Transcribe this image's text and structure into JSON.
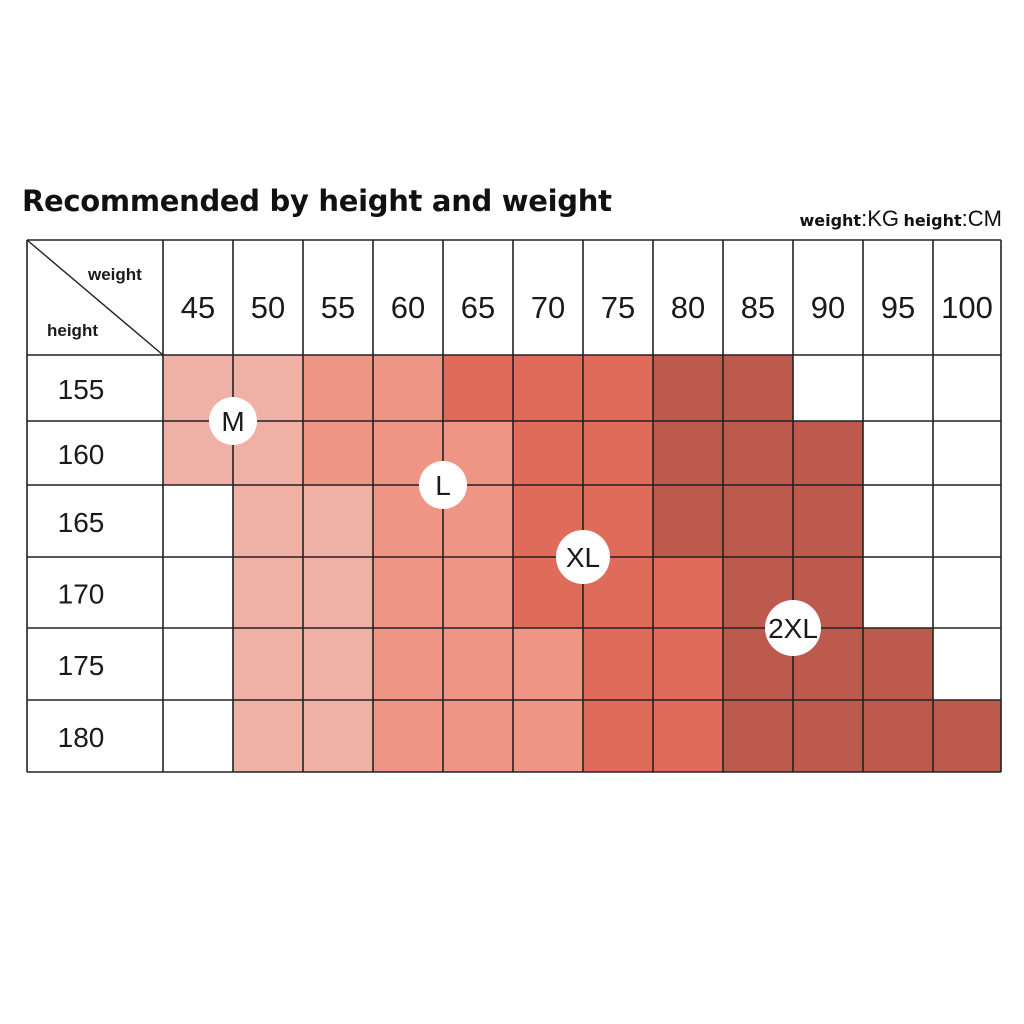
{
  "title": "Recommended by height and weight",
  "units": {
    "weight_label": "weight",
    "weight_unit": "KG",
    "height_label": "height",
    "height_unit": "CM",
    "separator": ":"
  },
  "chart_data": {
    "type": "heatmap",
    "corner_labels": {
      "column_axis": "weight",
      "row_axis": "height"
    },
    "x": [
      "45",
      "50",
      "55",
      "60",
      "65",
      "70",
      "75",
      "80",
      "85",
      "90",
      "95",
      "100"
    ],
    "y": [
      "155",
      "160",
      "165",
      "170",
      "175",
      "180"
    ],
    "levels": [
      [
        1,
        1,
        2,
        2,
        3,
        3,
        3,
        4,
        4,
        0,
        0,
        0
      ],
      [
        1,
        1,
        2,
        2,
        2,
        3,
        3,
        4,
        4,
        4,
        0,
        0
      ],
      [
        0,
        1,
        1,
        2,
        2,
        3,
        3,
        4,
        4,
        4,
        0,
        0
      ],
      [
        0,
        1,
        1,
        2,
        2,
        3,
        3,
        3,
        4,
        4,
        0,
        0
      ],
      [
        0,
        1,
        1,
        2,
        2,
        2,
        3,
        3,
        4,
        4,
        4,
        0
      ],
      [
        0,
        1,
        1,
        2,
        2,
        2,
        3,
        3,
        4,
        4,
        4,
        4
      ]
    ],
    "level_colors": [
      "#ffffff",
      "#efb0a6",
      "#ee9586",
      "#df6c5a",
      "#bb5a4d"
    ],
    "size_labels": [
      {
        "text": "M",
        "weight": "50",
        "height": "155-160"
      },
      {
        "text": "L",
        "weight": "65",
        "height": "160-165"
      },
      {
        "text": "XL",
        "weight": "75",
        "height": "165-170"
      },
      {
        "text": "2XL",
        "weight": "85-90",
        "height": "170-175"
      }
    ]
  }
}
